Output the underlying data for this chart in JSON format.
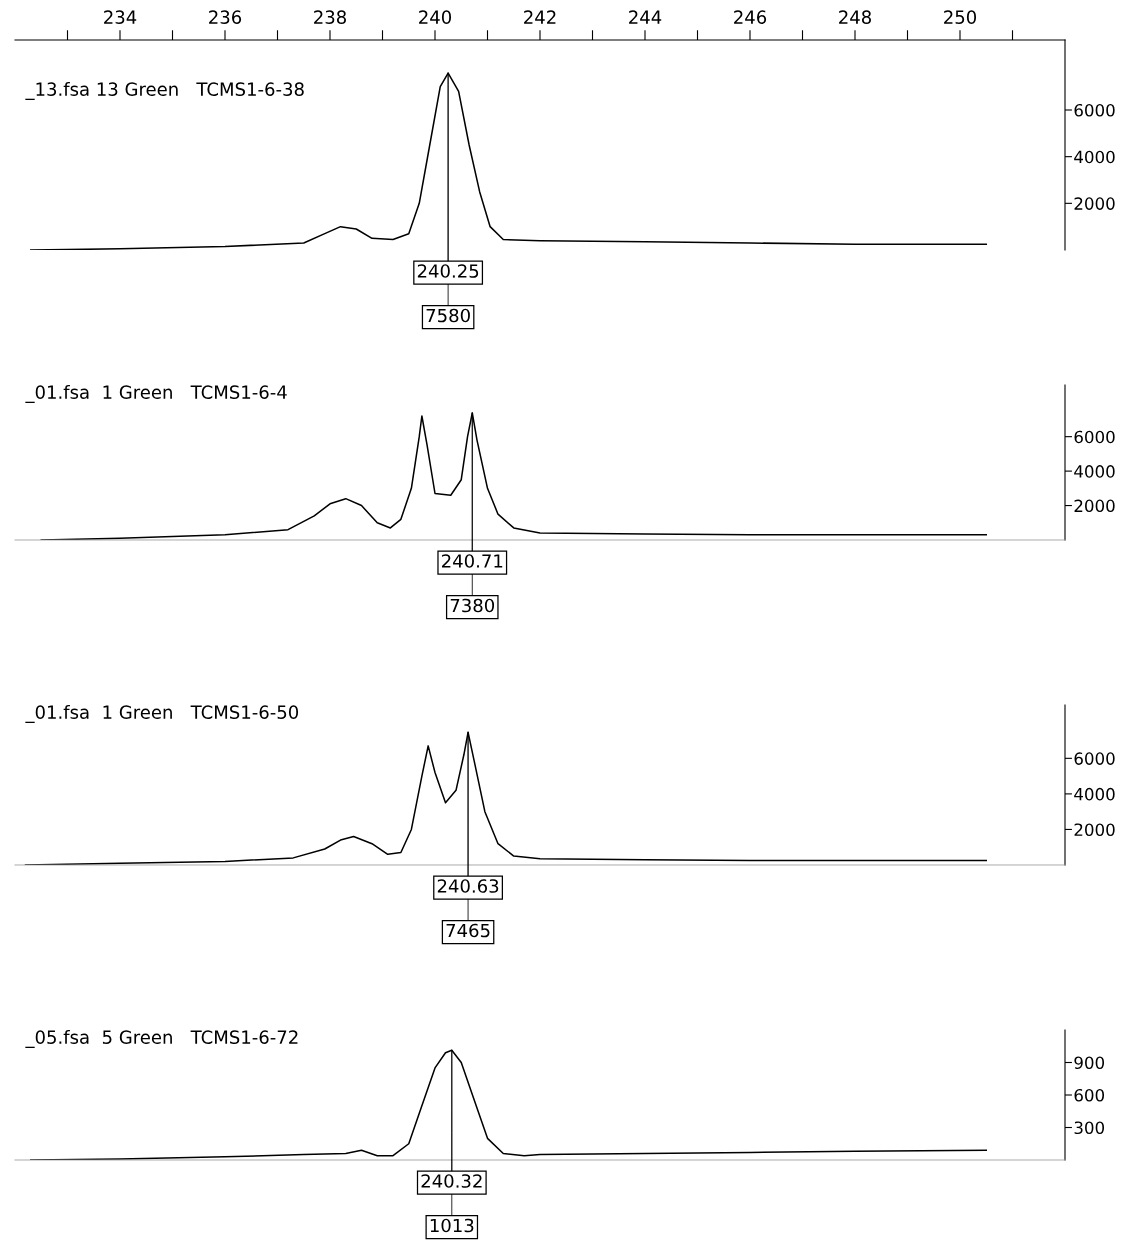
{
  "chart_data": [
    {
      "type": "line",
      "title": "_13.fsa 13 Green   TCMS1-6-38",
      "xlim": [
        232,
        252
      ],
      "xticks": [
        {
          "value": 233,
          "label": null
        },
        234,
        {
          "value": 235,
          "label": null
        },
        236,
        {
          "value": 237,
          "label": null
        },
        238,
        {
          "value": 239,
          "label": null
        },
        240,
        {
          "value": 241,
          "label": null
        },
        242,
        {
          "value": 243,
          "label": null
        },
        244,
        {
          "value": 245,
          "label": null
        },
        246,
        {
          "value": 247,
          "label": null
        },
        248,
        {
          "value": 249,
          "label": null
        },
        250,
        {
          "value": 251,
          "label": null
        }
      ],
      "ylim": [
        0,
        9000
      ],
      "yticks": [
        2000,
        4000,
        6000
      ],
      "grid": false,
      "legend": false,
      "marker": "none",
      "line_style": "solid",
      "series": [
        {
          "color": "#000000",
          "x": [
            232.3,
            234,
            236,
            237.5,
            237.9,
            238.2,
            238.5,
            238.8,
            239.2,
            239.5,
            239.7,
            239.9,
            240.1,
            240.25,
            240.45,
            240.65,
            240.85,
            241.05,
            241.3,
            242,
            244,
            246,
            248,
            250.5
          ],
          "values": [
            0,
            50,
            150,
            300,
            700,
            1000,
            900,
            500,
            450,
            700,
            2000,
            4500,
            7000,
            7580,
            6800,
            4500,
            2500,
            1000,
            450,
            400,
            350,
            300,
            250,
            250
          ]
        }
      ],
      "annotations": [
        {
          "text": "240.25",
          "x": 240.25,
          "y": 7580
        },
        {
          "text": "7580",
          "x": 240.25,
          "y": 7580
        }
      ]
    },
    {
      "type": "line",
      "title": "_01.fsa  1 Green   TCMS1-6-4",
      "xlim": [
        232,
        252
      ],
      "tick_labels": "y",
      "ylim": [
        0,
        9000
      ],
      "yticks": [
        2000,
        4000,
        6000
      ],
      "grid": false,
      "legend": false,
      "marker": "none",
      "line_style": "solid",
      "series": [
        {
          "color": "#000000",
          "x": [
            232.5,
            234,
            236,
            237.2,
            237.7,
            238.0,
            238.3,
            238.6,
            238.9,
            239.15,
            239.35,
            239.55,
            239.7,
            239.75,
            239.85,
            240.0,
            240.3,
            240.5,
            240.62,
            240.71,
            240.8,
            241.0,
            241.2,
            241.5,
            242,
            244,
            246,
            248,
            250.5
          ],
          "values": [
            0,
            100,
            300,
            600,
            1400,
            2100,
            2400,
            2000,
            1000,
            700,
            1200,
            3000,
            6000,
            7200,
            5500,
            2700,
            2600,
            3500,
            6000,
            7380,
            5800,
            3000,
            1500,
            700,
            400,
            350,
            300,
            300,
            300
          ]
        }
      ],
      "annotations": [
        {
          "text": "240.71",
          "x": 240.71,
          "y": 7380
        },
        {
          "text": "7380",
          "x": 240.71,
          "y": 7380
        }
      ]
    },
    {
      "type": "line",
      "title": "_01.fsa  1 Green   TCMS1-6-50",
      "xlim": [
        232,
        252
      ],
      "tick_labels": "y",
      "ylim": [
        0,
        9000
      ],
      "yticks": [
        2000,
        4000,
        6000
      ],
      "grid": false,
      "legend": false,
      "marker": "none",
      "line_style": "solid",
      "series": [
        {
          "color": "#000000",
          "x": [
            232.2,
            234,
            236,
            237.3,
            237.9,
            238.2,
            238.45,
            238.8,
            239.1,
            239.35,
            239.55,
            239.75,
            239.87,
            240.0,
            240.2,
            240.4,
            240.55,
            240.63,
            240.75,
            240.95,
            241.2,
            241.5,
            242,
            244,
            246,
            248,
            250.5
          ],
          "values": [
            0,
            100,
            200,
            400,
            900,
            1400,
            1600,
            1200,
            600,
            700,
            2000,
            5000,
            6700,
            5200,
            3500,
            4200,
            6200,
            7465,
            5800,
            3000,
            1200,
            500,
            350,
            300,
            250,
            250,
            250
          ]
        }
      ],
      "annotations": [
        {
          "text": "240.63",
          "x": 240.63,
          "y": 7465
        },
        {
          "text": "7465",
          "x": 240.63,
          "y": 7465
        }
      ]
    },
    {
      "type": "line",
      "title": "_05.fsa  5 Green   TCMS1-6-72",
      "xlim": [
        232,
        252
      ],
      "tick_labels": "y",
      "ylim": [
        0,
        1200
      ],
      "yticks": [
        300,
        600,
        900
      ],
      "grid": false,
      "legend": false,
      "marker": "none",
      "line_style": "solid",
      "series": [
        {
          "color": "#000000",
          "x": [
            232.3,
            234,
            236,
            237.5,
            238.3,
            238.6,
            238.9,
            239.2,
            239.5,
            239.75,
            240.0,
            240.2,
            240.32,
            240.5,
            240.75,
            241.0,
            241.3,
            241.7,
            242,
            244,
            246,
            248,
            250.5
          ],
          "values": [
            0,
            10,
            30,
            50,
            60,
            90,
            40,
            40,
            150,
            500,
            850,
            990,
            1013,
            900,
            550,
            200,
            60,
            40,
            50,
            60,
            70,
            80,
            90
          ]
        }
      ],
      "annotations": [
        {
          "text": "240.32",
          "x": 240.32,
          "y": 1013
        },
        {
          "text": "1013",
          "x": 240.32,
          "y": 1013
        }
      ]
    }
  ]
}
